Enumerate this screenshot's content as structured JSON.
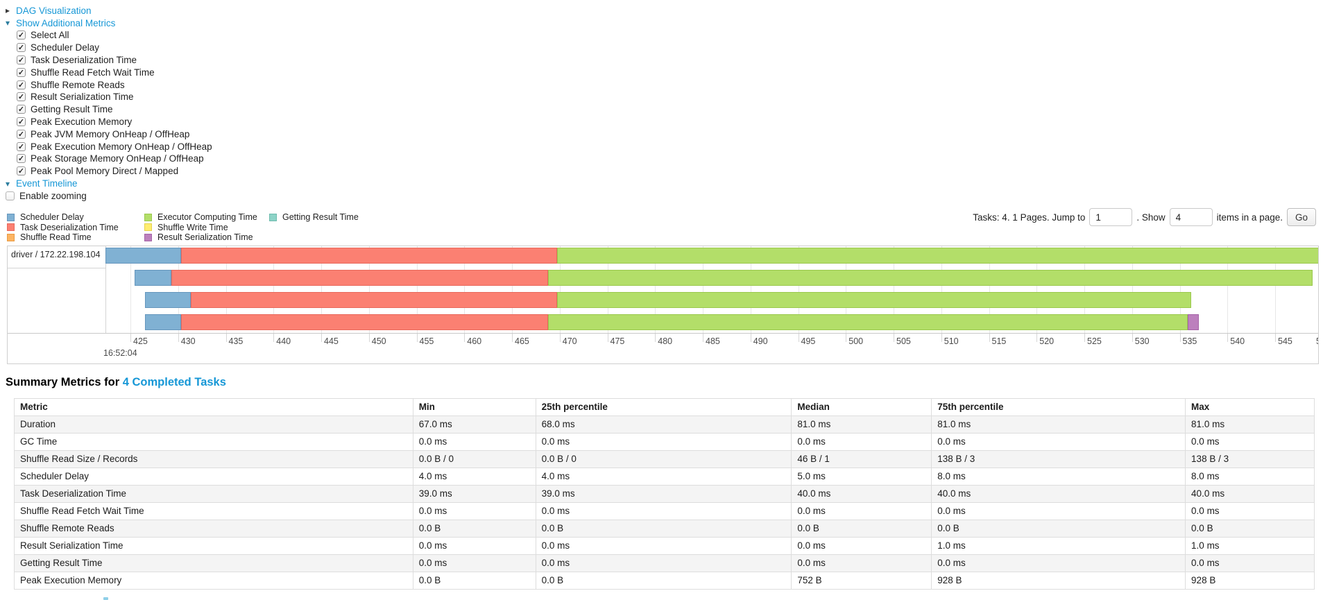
{
  "colors": {
    "link": "#1697d6"
  },
  "toggles": {
    "dag": {
      "label": "DAG Visualization",
      "state": "collapsed"
    },
    "metrics": {
      "label": "Show Additional Metrics",
      "state": "expanded"
    },
    "timeline": {
      "label": "Event Timeline",
      "state": "expanded"
    }
  },
  "metric_checkboxes": [
    {
      "label": "Select All",
      "checked": true
    },
    {
      "label": "Scheduler Delay",
      "checked": true
    },
    {
      "label": "Task Deserialization Time",
      "checked": true
    },
    {
      "label": "Shuffle Read Fetch Wait Time",
      "checked": true
    },
    {
      "label": "Shuffle Remote Reads",
      "checked": true
    },
    {
      "label": "Result Serialization Time",
      "checked": true
    },
    {
      "label": "Getting Result Time",
      "checked": true
    },
    {
      "label": "Peak Execution Memory",
      "checked": true
    },
    {
      "label": "Peak JVM Memory OnHeap / OffHeap",
      "checked": true
    },
    {
      "label": "Peak Execution Memory OnHeap / OffHeap",
      "checked": true
    },
    {
      "label": "Peak Storage Memory OnHeap / OffHeap",
      "checked": true
    },
    {
      "label": "Peak Pool Memory Direct / Mapped",
      "checked": true
    }
  ],
  "enable_zooming": {
    "label": "Enable zooming",
    "checked": false
  },
  "pagination": {
    "summary": "Tasks: 4. 1 Pages. Jump to",
    "jump_value": "1",
    "show_label": ". Show",
    "show_value": "4",
    "items_label": "items in a page.",
    "go_label": "Go"
  },
  "chart_data": {
    "type": "timeline",
    "group_label": "driver / 172.22.198.104",
    "x_axis": {
      "window": [
        422.4,
        549.8
      ],
      "tick_start": 425,
      "tick_end": 550,
      "tick_step": 5,
      "time_anchor_label": "16:52:04",
      "units": "seconds of 16:52 (ms resolution)"
    },
    "series_colors": {
      "scheduler_delay": {
        "fill": "#80B1D3",
        "border": "#6596BD"
      },
      "deserialization": {
        "fill": "#FB8072",
        "border": "#E8685B"
      },
      "shuffle_read": {
        "fill": "#FDB462",
        "border": "#E89B43"
      },
      "executor_computing": {
        "fill": "#B3DE69",
        "border": "#9AC84D"
      },
      "shuffle_write": {
        "fill": "#FFED6F",
        "border": "#E5D24F"
      },
      "result_serialization": {
        "fill": "#BC80BD",
        "border": "#A564A7"
      },
      "getting_result": {
        "fill": "#8DD3C7",
        "border": "#6FBCAE"
      }
    },
    "legend": [
      {
        "key": "scheduler_delay",
        "label": "Scheduler Delay",
        "column": 0
      },
      {
        "key": "deserialization",
        "label": "Task Deserialization Time",
        "column": 0
      },
      {
        "key": "shuffle_read",
        "label": "Shuffle Read Time",
        "column": 0
      },
      {
        "key": "executor_computing",
        "label": "Executor Computing Time",
        "column": 1
      },
      {
        "key": "shuffle_write",
        "label": "Shuffle Write Time",
        "column": 1
      },
      {
        "key": "result_serialization",
        "label": "Result Serialization Time",
        "column": 1
      },
      {
        "key": "getting_result",
        "label": "Getting Result Time",
        "column": 2
      }
    ],
    "tasks": [
      {
        "segments": [
          {
            "key": "scheduler_delay",
            "start": 422.4,
            "end": 430.3
          },
          {
            "key": "deserialization",
            "start": 430.3,
            "end": 469.7
          },
          {
            "key": "executor_computing",
            "start": 469.7,
            "end": 549.6
          }
        ]
      },
      {
        "segments": [
          {
            "key": "scheduler_delay",
            "start": 425.4,
            "end": 429.3
          },
          {
            "key": "deserialization",
            "start": 429.3,
            "end": 468.8
          },
          {
            "key": "executor_computing",
            "start": 468.8,
            "end": 548.9
          }
        ]
      },
      {
        "segments": [
          {
            "key": "scheduler_delay",
            "start": 426.5,
            "end": 431.3
          },
          {
            "key": "deserialization",
            "start": 431.3,
            "end": 469.7
          },
          {
            "key": "executor_computing",
            "start": 469.7,
            "end": 536.2
          }
        ]
      },
      {
        "segments": [
          {
            "key": "scheduler_delay",
            "start": 426.5,
            "end": 430.3
          },
          {
            "key": "deserialization",
            "start": 430.3,
            "end": 468.8
          },
          {
            "key": "executor_computing",
            "start": 468.8,
            "end": 535.8
          },
          {
            "key": "result_serialization",
            "start": 535.8,
            "end": 537.0
          }
        ]
      }
    ]
  },
  "summary": {
    "heading_prefix": "Summary Metrics for ",
    "heading_link": "4 Completed Tasks",
    "table": {
      "headers": [
        "Metric",
        "Min",
        "25th percentile",
        "Median",
        "75th percentile",
        "Max"
      ],
      "rows": [
        {
          "metric": "Duration",
          "values": [
            "67.0 ms",
            "68.0 ms",
            "81.0 ms",
            "81.0 ms",
            "81.0 ms"
          ]
        },
        {
          "metric": "GC Time",
          "values": [
            "0.0 ms",
            "0.0 ms",
            "0.0 ms",
            "0.0 ms",
            "0.0 ms"
          ]
        },
        {
          "metric": "Shuffle Read Size / Records",
          "values": [
            "0.0 B / 0",
            "0.0 B / 0",
            "46 B / 1",
            "138 B / 3",
            "138 B / 3"
          ]
        },
        {
          "metric": "Scheduler Delay",
          "values": [
            "4.0 ms",
            "4.0 ms",
            "5.0 ms",
            "8.0 ms",
            "8.0 ms"
          ]
        },
        {
          "metric": "Task Deserialization Time",
          "values": [
            "39.0 ms",
            "39.0 ms",
            "40.0 ms",
            "40.0 ms",
            "40.0 ms"
          ]
        },
        {
          "metric": "Shuffle Read Fetch Wait Time",
          "values": [
            "0.0 ms",
            "0.0 ms",
            "0.0 ms",
            "0.0 ms",
            "0.0 ms"
          ]
        },
        {
          "metric": "Shuffle Remote Reads",
          "values": [
            "0.0 B",
            "0.0 B",
            "0.0 B",
            "0.0 B",
            "0.0 B"
          ]
        },
        {
          "metric": "Result Serialization Time",
          "values": [
            "0.0 ms",
            "0.0 ms",
            "0.0 ms",
            "1.0 ms",
            "1.0 ms"
          ]
        },
        {
          "metric": "Getting Result Time",
          "values": [
            "0.0 ms",
            "0.0 ms",
            "0.0 ms",
            "0.0 ms",
            "0.0 ms"
          ]
        },
        {
          "metric": "Peak Execution Memory",
          "values": [
            "0.0 B",
            "0.0 B",
            "752 B",
            "928 B",
            "928 B"
          ]
        }
      ]
    }
  }
}
